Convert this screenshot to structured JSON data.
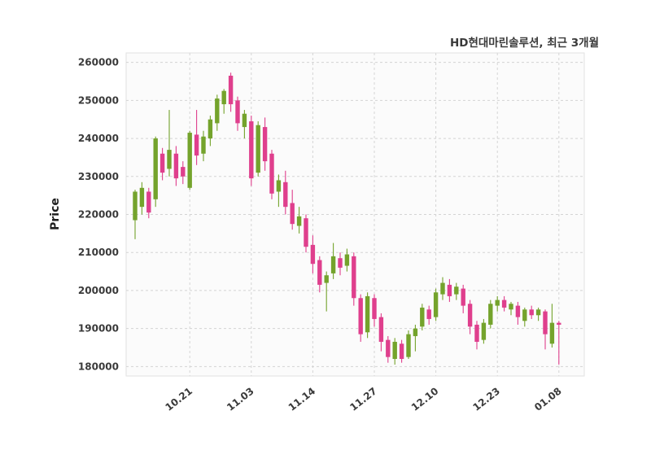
{
  "title": "HD현대마린솔루션, 최근 3개월",
  "chart_data": {
    "type": "candlestick",
    "title": "HD현대마린솔루션, 최근 3개월",
    "xlabel": "",
    "ylabel": "Price",
    "ylim": [
      177500,
      262500
    ],
    "grid": "dashed",
    "legend": "none",
    "up_color": "#74a32c",
    "down_color": "#df3f8d",
    "y_ticks": [
      180000,
      190000,
      200000,
      210000,
      220000,
      230000,
      240000,
      250000,
      260000
    ],
    "x_tick_labels": [
      "10.21",
      "11.03",
      "11.14",
      "11.27",
      "12.10",
      "12.23",
      "01.08"
    ],
    "x_tick_indices": [
      8,
      17,
      26,
      35,
      44,
      53,
      62
    ],
    "ohlc_note": "each entry is [open, high, low, close] in KRW",
    "ohlc": [
      [
        218500,
        226500,
        213500,
        226000
      ],
      [
        222000,
        228500,
        220000,
        227000
      ],
      [
        226000,
        227000,
        219000,
        220500
      ],
      [
        224000,
        240500,
        222000,
        240000
      ],
      [
        236000,
        237500,
        229000,
        231000
      ],
      [
        232000,
        247500,
        230000,
        237000
      ],
      [
        236000,
        238000,
        227500,
        229500
      ],
      [
        232500,
        234000,
        228000,
        230000
      ],
      [
        227000,
        242000,
        226500,
        241500
      ],
      [
        241000,
        247500,
        233000,
        235500
      ],
      [
        236000,
        242000,
        234000,
        240500
      ],
      [
        240000,
        246000,
        238000,
        245000
      ],
      [
        244000,
        251500,
        242000,
        250500
      ],
      [
        249000,
        253000,
        246500,
        252500
      ],
      [
        256500,
        257300,
        247000,
        249000
      ],
      [
        250000,
        251000,
        242000,
        244000
      ],
      [
        243000,
        247500,
        240000,
        246500
      ],
      [
        244500,
        246000,
        227500,
        229500
      ],
      [
        231000,
        244500,
        230000,
        243500
      ],
      [
        243000,
        245500,
        231500,
        234000
      ],
      [
        236000,
        237000,
        224000,
        225500
      ],
      [
        226000,
        230500,
        222000,
        229000
      ],
      [
        228500,
        231500,
        220000,
        222000
      ],
      [
        223000,
        226500,
        216000,
        217500
      ],
      [
        217000,
        222000,
        215000,
        219500
      ],
      [
        219000,
        220000,
        210000,
        211500
      ],
      [
        212000,
        214500,
        204500,
        207000
      ],
      [
        208000,
        209000,
        199500,
        201500
      ],
      [
        202000,
        205000,
        194500,
        204000
      ],
      [
        204500,
        212500,
        203000,
        209000
      ],
      [
        208500,
        210000,
        204000,
        206000
      ],
      [
        206500,
        211000,
        205000,
        209500
      ],
      [
        209000,
        210000,
        196000,
        198000
      ],
      [
        198000,
        199000,
        186500,
        188500
      ],
      [
        189000,
        199500,
        187500,
        198500
      ],
      [
        198000,
        199000,
        190500,
        192500
      ],
      [
        193000,
        194000,
        184000,
        186500
      ],
      [
        187000,
        188000,
        181000,
        182500
      ],
      [
        182000,
        187500,
        180500,
        186500
      ],
      [
        186000,
        187000,
        181000,
        182000
      ],
      [
        182500,
        189500,
        182000,
        188500
      ],
      [
        188000,
        191000,
        184000,
        190000
      ],
      [
        190500,
        196500,
        189500,
        195500
      ],
      [
        195000,
        196000,
        191000,
        192500
      ],
      [
        193000,
        200500,
        192000,
        199500
      ],
      [
        199000,
        203500,
        197500,
        202000
      ],
      [
        201500,
        203000,
        197000,
        198500
      ],
      [
        199000,
        202000,
        197500,
        201000
      ],
      [
        200500,
        201500,
        194000,
        196000
      ],
      [
        196500,
        197500,
        188500,
        190500
      ],
      [
        191000,
        192000,
        184500,
        186500
      ],
      [
        187000,
        192500,
        186000,
        191500
      ],
      [
        191000,
        197500,
        190000,
        196500
      ],
      [
        196000,
        198500,
        194500,
        197500
      ],
      [
        197500,
        198500,
        194500,
        195500
      ],
      [
        195000,
        197000,
        193500,
        196500
      ],
      [
        196000,
        197000,
        191000,
        193000
      ],
      [
        192000,
        195500,
        190500,
        195000
      ],
      [
        195000,
        196000,
        192500,
        193500
      ],
      [
        193500,
        195500,
        192000,
        195000
      ],
      [
        194500,
        195000,
        184500,
        188500
      ],
      [
        186000,
        196500,
        185000,
        191500
      ],
      [
        191500,
        192000,
        180500,
        191000
      ]
    ]
  }
}
